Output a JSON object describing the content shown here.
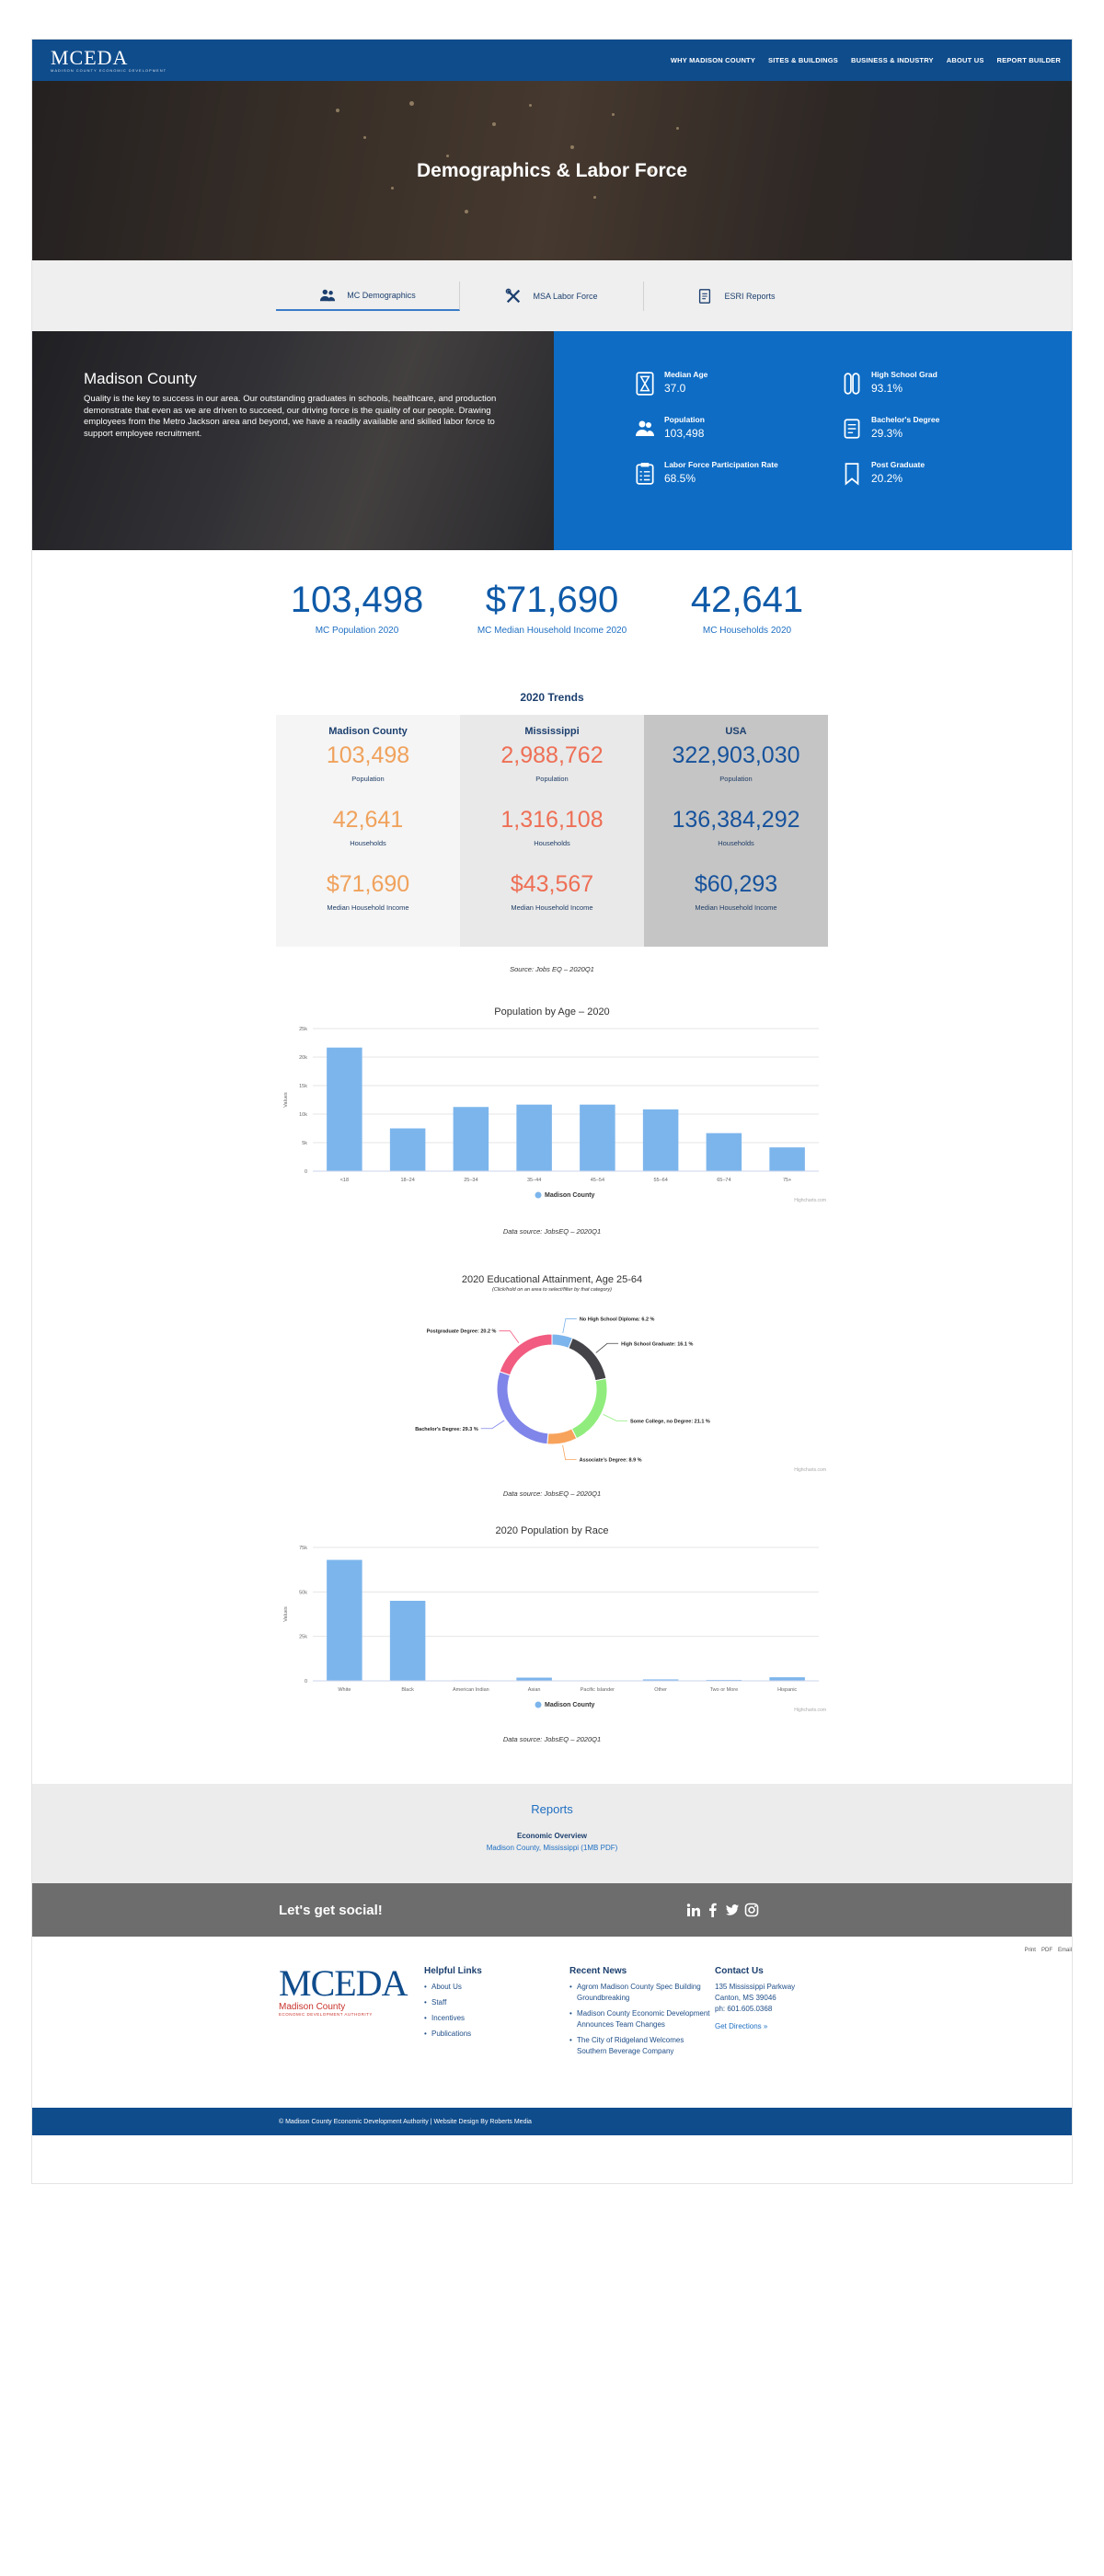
{
  "nav": {
    "logo_text": "MCEDA",
    "logo_sub": "MADISON COUNTY ECONOMIC DEVELOPMENT",
    "items": [
      "WHY MADISON COUNTY",
      "SITES & BUILDINGS",
      "BUSINESS & INDUSTRY",
      "ABOUT US",
      "REPORT BUILDER"
    ]
  },
  "hero": {
    "title": "Demographics & Labor Force"
  },
  "tabs": [
    {
      "label": "MC Demographics",
      "icon": "people-icon"
    },
    {
      "label": "MSA Labor Force",
      "icon": "tools-icon"
    },
    {
      "label": "ESRI Reports",
      "icon": "document-icon"
    }
  ],
  "county": {
    "title": "Madison County",
    "desc": "Quality is the key to success in our area. Our outstanding graduates in schools, healthcare, and production demonstrate that even as we are driven to succeed, our driving force is the quality of our people. Drawing employees from the Metro Jackson area and beyond, we have a readily available and skilled labor force to support employee recruitment.",
    "stats": [
      {
        "label": "Median Age",
        "value": "37.0",
        "icon": "hourglass-icon"
      },
      {
        "label": "High School Grad",
        "value": "93.1%",
        "icon": "diploma-icon"
      },
      {
        "label": "Population",
        "value": "103,498",
        "icon": "people-icon"
      },
      {
        "label": "Bachelor's Degree",
        "value": "29.3%",
        "icon": "certificate-icon"
      },
      {
        "label": "Labor Force Participation Rate",
        "value": "68.5%",
        "icon": "clipboard-icon"
      },
      {
        "label": "Post Graduate",
        "value": "20.2%",
        "icon": "bookmark-icon"
      }
    ]
  },
  "big_stats": [
    {
      "value": "103,498",
      "label": "MC Population 2020"
    },
    {
      "value": "$71,690",
      "label": "MC Median Household Income 2020"
    },
    {
      "value": "42,641",
      "label": "MC Households 2020"
    }
  ],
  "trends": {
    "title": "2020 Trends",
    "columns": [
      {
        "name": "Madison County",
        "population": "103,498",
        "households": "42,641",
        "income": "$71,690"
      },
      {
        "name": "Mississippi",
        "population": "2,988,762",
        "households": "1,316,108",
        "income": "$43,567"
      },
      {
        "name": "USA",
        "population": "322,903,030",
        "households": "136,384,292",
        "income": "$60,293"
      }
    ],
    "labels": {
      "population": "Population",
      "households": "Households",
      "income": "Median Household Income"
    },
    "source": "Source: Jobs EQ – 2020Q1"
  },
  "chart_data": [
    {
      "type": "bar",
      "title": "Population by Age – 2020",
      "categories": [
        "<18",
        "18–24",
        "25–34",
        "35–44",
        "45–54",
        "55–64",
        "65–74",
        "75+"
      ],
      "series": [
        {
          "name": "Madison County",
          "values": [
            26,
            9,
            13.5,
            14,
            14,
            13,
            8,
            5
          ]
        }
      ],
      "ylabel": "Values",
      "ylim": [
        0,
        30
      ],
      "yticks": [
        "0",
        "5k",
        "10k",
        "15k",
        "20k",
        "25k"
      ],
      "credits": "Highcharts.com",
      "source": "Data source: JobsEQ – 2020Q1"
    },
    {
      "type": "pie",
      "title": "2020 Educational Attainment, Age 25-64",
      "subtitle": "(Click/hold on an area to select/filter by that category)",
      "slices": [
        {
          "label": "No High School Diploma",
          "value": 6.2,
          "color": "#7cb5ec",
          "text": "No High School Diploma: 6.2 %"
        },
        {
          "label": "High School Graduate",
          "value": 16.1,
          "color": "#434348",
          "text": "High School Graduate: 16.1 %"
        },
        {
          "label": "Some College, no Degree",
          "value": 21.1,
          "color": "#90ed7d",
          "text": "Some College, no Degree: 21.1 %"
        },
        {
          "label": "Associate's Degree",
          "value": 8.9,
          "color": "#f7a35c",
          "text": "Associate's Degree: 8.9 %"
        },
        {
          "label": "Bachelor's Degree",
          "value": 29.3,
          "color": "#8085e9",
          "text": "Bachelor's Degree: 29.3 %"
        },
        {
          "label": "Postgraduate Degree",
          "value": 20.2,
          "color": "#f15c80",
          "text": "Postgraduate Degree: 20.2 %"
        }
      ],
      "credits": "Highcharts.com",
      "source": "Data source: JobsEQ – 2020Q1"
    },
    {
      "type": "bar",
      "title": "2020 Population by Race",
      "categories": [
        "White",
        "Black",
        "American Indian",
        "Asian",
        "Pacific Islander",
        "Other",
        "Two or More",
        "Hispanic"
      ],
      "series": [
        {
          "name": "Madison County",
          "values": [
            68,
            45,
            0.3,
            1.8,
            0.1,
            0.8,
            0.5,
            2
          ]
        }
      ],
      "ylabel": "Values",
      "ylim": [
        0,
        75
      ],
      "yticks": [
        "0",
        "25k",
        "50k",
        "75k"
      ],
      "credits": "Highcharts.com",
      "source": "Data source: JobsEQ – 2020Q1"
    }
  ],
  "reports": {
    "title": "Reports",
    "item_title": "Economic Overview",
    "item_link": "Madison County, Mississippi (1MB PDF)"
  },
  "social": {
    "title": "Let's get social!",
    "icons": [
      "linkedin-icon",
      "facebook-icon",
      "twitter-icon",
      "instagram-icon"
    ]
  },
  "footer": {
    "logo_text": "MCEDA",
    "logo_sub1": "Madison County",
    "logo_sub2": "ECONOMIC DEVELOPMENT AUTHORITY",
    "helpful_title": "Helpful Links",
    "helpful": [
      "About Us",
      "Staff",
      "Incentives",
      "Publications"
    ],
    "news_title": "Recent News",
    "news": [
      "Agrom Madison County Spec Building Groundbreaking",
      "Madison County Economic Development Announces Team Changes",
      "The City of Ridgeland Welcomes Southern Beverage Company"
    ],
    "contact_title": "Contact Us",
    "contact_lines": [
      "135 Mississippi Parkway",
      "Canton, MS 39046",
      "ph: 601.605.0368"
    ],
    "directions": "Get Directions »",
    "share": [
      "Print",
      "PDF",
      "Email"
    ],
    "copyright": "© Madison County Economic Development Authority | Website Design By Roberts Media"
  }
}
